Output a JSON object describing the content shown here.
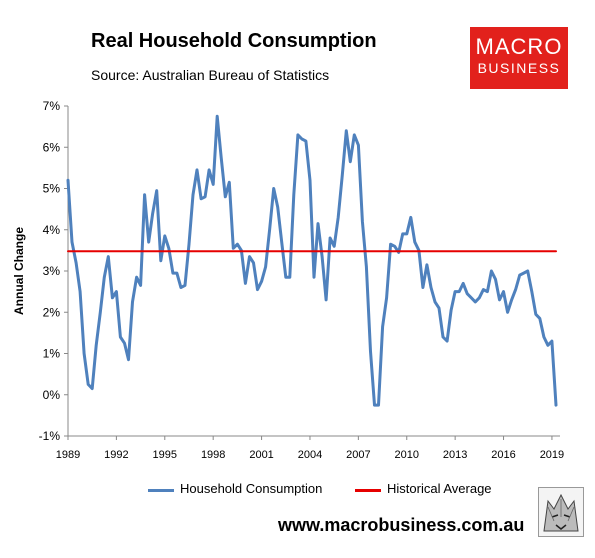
{
  "header": {
    "title": "Real Household Consumption",
    "subtitle": "Source: Australian Bureau of Statistics"
  },
  "logo": {
    "line1": "MACRO",
    "line2": "BUSINESS",
    "color": "#e2211c"
  },
  "footer": {
    "website": "www.macrobusiness.com.au"
  },
  "chart_data": {
    "type": "line",
    "title": "Real Household Consumption",
    "ylabel": "Annual Change",
    "xlabel": "",
    "xlim": [
      1989,
      2019.5
    ],
    "ylim": [
      -1,
      7
    ],
    "y_ticks": [
      -1,
      0,
      1,
      2,
      3,
      4,
      5,
      6,
      7
    ],
    "y_tick_labels": [
      "-1%",
      "0%",
      "1%",
      "2%",
      "3%",
      "4%",
      "5%",
      "6%",
      "7%"
    ],
    "x_ticks": [
      1989,
      1992,
      1995,
      1998,
      2001,
      2004,
      2007,
      2010,
      2013,
      2016,
      2019
    ],
    "x_tick_labels": [
      "1989",
      "1992",
      "1995",
      "1998",
      "2001",
      "2004",
      "2007",
      "2010",
      "2013",
      "2016",
      "2019"
    ],
    "grid": false,
    "legend_position": "bottom",
    "series": [
      {
        "name": "Household Consumption",
        "color": "#4f81bd",
        "x": [
          1989.0,
          1989.25,
          1989.5,
          1989.75,
          1990.0,
          1990.25,
          1990.5,
          1990.75,
          1991.0,
          1991.25,
          1991.5,
          1991.75,
          1992.0,
          1992.25,
          1992.5,
          1992.75,
          1993.0,
          1993.25,
          1993.5,
          1993.75,
          1994.0,
          1994.25,
          1994.5,
          1994.75,
          1995.0,
          1995.25,
          1995.5,
          1995.75,
          1996.0,
          1996.25,
          1996.5,
          1996.75,
          1997.0,
          1997.25,
          1997.5,
          1997.75,
          1998.0,
          1998.25,
          1998.5,
          1998.75,
          1999.0,
          1999.25,
          1999.5,
          1999.75,
          2000.0,
          2000.25,
          2000.5,
          2000.75,
          2001.0,
          2001.25,
          2001.5,
          2001.75,
          2002.0,
          2002.25,
          2002.5,
          2002.75,
          2003.0,
          2003.25,
          2003.5,
          2003.75,
          2004.0,
          2004.25,
          2004.5,
          2004.75,
          2005.0,
          2005.25,
          2005.5,
          2005.75,
          2006.0,
          2006.25,
          2006.5,
          2006.75,
          2007.0,
          2007.25,
          2007.5,
          2007.75,
          2008.0,
          2008.25,
          2008.5,
          2008.75,
          2009.0,
          2009.25,
          2009.5,
          2009.75,
          2010.0,
          2010.25,
          2010.5,
          2010.75,
          2011.0,
          2011.25,
          2011.5,
          2011.75,
          2012.0,
          2012.25,
          2012.5,
          2012.75,
          2013.0,
          2013.25,
          2013.5,
          2013.75,
          2014.0,
          2014.25,
          2014.5,
          2014.75,
          2015.0,
          2015.25,
          2015.5,
          2015.75,
          2016.0,
          2016.25,
          2016.5,
          2016.75,
          2017.0,
          2017.25,
          2017.5,
          2017.75,
          2018.0,
          2018.25,
          2018.5,
          2018.75,
          2019.0,
          2019.25
        ],
        "values": [
          5.2,
          3.7,
          3.2,
          2.5,
          1.0,
          0.25,
          0.15,
          1.2,
          2.0,
          2.85,
          3.35,
          2.35,
          2.5,
          1.4,
          1.25,
          0.85,
          2.25,
          2.85,
          2.65,
          4.85,
          3.7,
          4.4,
          4.95,
          3.25,
          3.85,
          3.55,
          2.95,
          2.95,
          2.6,
          2.65,
          3.65,
          4.85,
          5.45,
          4.75,
          4.8,
          5.45,
          5.1,
          6.75,
          5.75,
          4.8,
          5.15,
          3.55,
          3.65,
          3.5,
          2.7,
          3.35,
          3.2,
          2.55,
          2.75,
          3.1,
          4.0,
          5.0,
          4.55,
          3.7,
          2.85,
          2.85,
          4.85,
          6.3,
          6.2,
          6.15,
          5.2,
          2.85,
          4.15,
          3.35,
          2.3,
          3.8,
          3.6,
          4.3,
          5.3,
          6.4,
          5.65,
          6.3,
          6.05,
          4.2,
          3.1,
          1.05,
          -0.25,
          -0.25,
          1.65,
          2.35,
          3.65,
          3.6,
          3.45,
          3.9,
          3.9,
          4.3,
          3.7,
          3.5,
          2.6,
          3.15,
          2.6,
          2.25,
          2.1,
          1.4,
          1.3,
          2.05,
          2.5,
          2.5,
          2.7,
          2.45,
          2.35,
          2.25,
          2.35,
          2.55,
          2.5,
          3.0,
          2.8,
          2.3,
          2.5,
          2.0,
          2.3,
          2.55,
          2.9,
          2.95,
          3.0,
          2.5,
          1.95,
          1.85,
          1.4,
          1.2,
          1.3,
          -0.25
        ]
      },
      {
        "name": "Historical Average",
        "color": "#e60000",
        "x": [
          1989.0,
          2019.25
        ],
        "values": [
          3.48,
          3.48
        ]
      }
    ]
  }
}
